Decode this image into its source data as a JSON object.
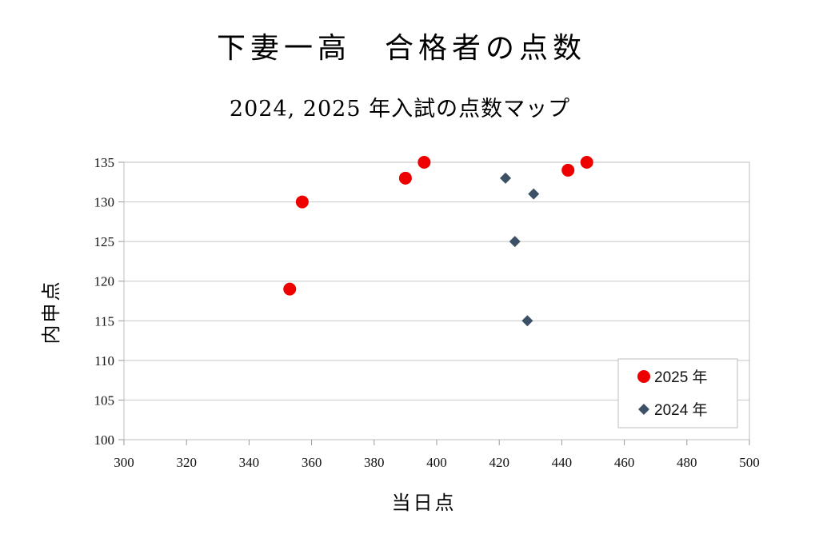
{
  "chart_data": {
    "type": "scatter",
    "title": "下妻一高　合格者の点数",
    "subtitle": "2024, 2025 年入試の点数マップ",
    "xlabel": "当日点",
    "ylabel": "内申点",
    "xlim": [
      300,
      500
    ],
    "ylim": [
      100,
      135
    ],
    "xticks": [
      300,
      320,
      340,
      360,
      380,
      400,
      420,
      440,
      460,
      480,
      500
    ],
    "yticks": [
      100,
      105,
      110,
      115,
      120,
      125,
      130,
      135
    ],
    "grid": "horizontal",
    "legend_position": "bottom-right",
    "series": [
      {
        "name": "2025 年",
        "marker": "circle",
        "color": "#ee0000",
        "points": [
          [
            353,
            119
          ],
          [
            357,
            130
          ],
          [
            390,
            133
          ],
          [
            396,
            135
          ],
          [
            442,
            134
          ],
          [
            448,
            135
          ]
        ]
      },
      {
        "name": "2024 年",
        "marker": "diamond",
        "color": "#3d5166",
        "points": [
          [
            422,
            133
          ],
          [
            425,
            125
          ],
          [
            429,
            115
          ],
          [
            431,
            131
          ]
        ]
      }
    ]
  }
}
